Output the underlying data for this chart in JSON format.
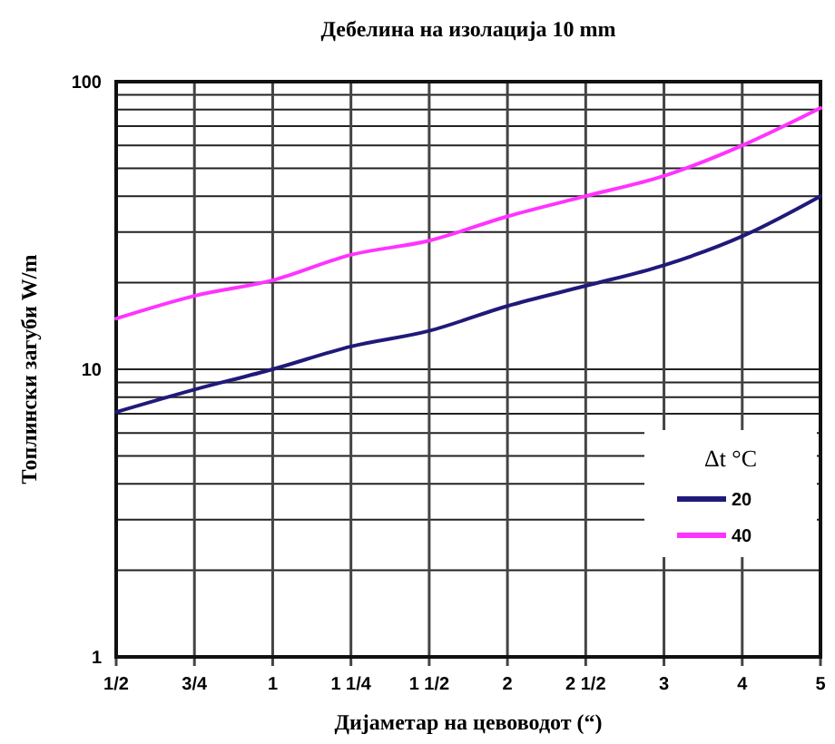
{
  "chart_data": {
    "type": "line",
    "title": "Дебелина на изолација 10 mm",
    "xlabel": "Дијаметар на цевоводот (“)",
    "ylabel": "Топлински загуби W/m",
    "legend_title": "Δt °C",
    "categories": [
      "1/2",
      "3/4",
      "1",
      "1 1/4",
      "1 1/2",
      "2",
      "2 1/2",
      "3",
      "4",
      "5"
    ],
    "series": [
      {
        "name": "20",
        "color": "#1f1a7a",
        "values": [
          7.1,
          8.5,
          10,
          12,
          13.6,
          16.6,
          19.5,
          23,
          29,
          40
        ]
      },
      {
        "name": "40",
        "color": "#ff33ff",
        "values": [
          15,
          18,
          20.4,
          25,
          28,
          34,
          40,
          47,
          60,
          81
        ]
      }
    ],
    "log": "y",
    "ylim": [
      1,
      100
    ],
    "yticks": [
      1,
      {
        "value": 2,
        "label": null
      },
      {
        "value": 3,
        "label": null
      },
      {
        "value": 4,
        "label": null
      },
      {
        "value": 5,
        "label": null
      },
      {
        "value": 6,
        "label": null
      },
      {
        "value": 7,
        "label": null
      },
      {
        "value": 8,
        "label": null
      },
      {
        "value": 9,
        "label": null
      },
      10,
      {
        "value": 20,
        "label": null
      },
      {
        "value": 30,
        "label": null
      },
      {
        "value": 40,
        "label": null
      },
      {
        "value": 50,
        "label": null
      },
      {
        "value": 60,
        "label": null
      },
      {
        "value": 70,
        "label": null
      },
      {
        "value": 80,
        "label": null
      },
      {
        "value": 90,
        "label": null
      },
      100
    ],
    "grid": true,
    "legend": "bottom right",
    "marker": "none",
    "line_style": "solid"
  }
}
